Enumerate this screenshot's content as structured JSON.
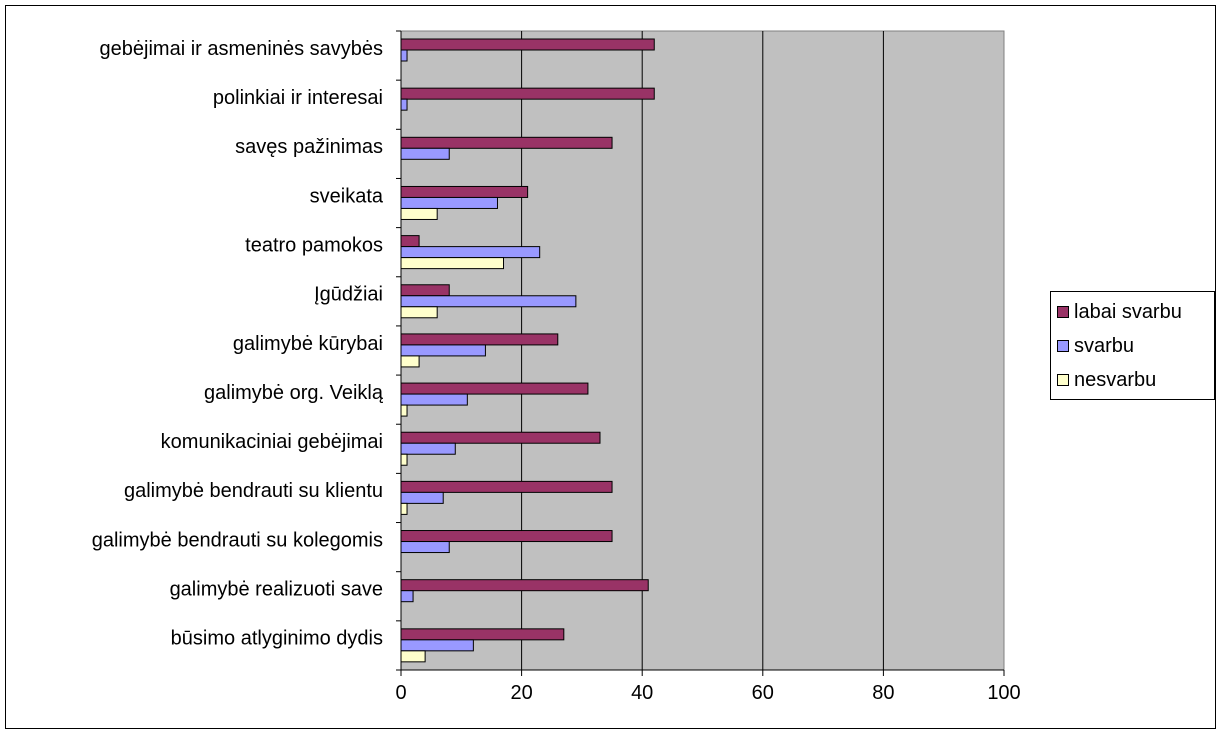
{
  "chart_data": {
    "type": "bar",
    "orientation": "horizontal",
    "categories": [
      "gebėjimai ir asmeninės savybės",
      "polinkiai ir interesai",
      "savęs pažinimas",
      "sveikata",
      "teatro pamokos",
      "Įgūdžiai",
      "galimybė kūrybai",
      "galimybė org. Veiklą",
      "komunikaciniai gebėjimai",
      "galimybė bendrauti su klientu",
      "galimybė bendrauti su kolegomis",
      "galimybė realizuoti save",
      "būsimo atlyginimo dydis"
    ],
    "series": [
      {
        "name": "labai svarbu",
        "color": "#993366",
        "values": [
          42,
          42,
          35,
          21,
          3,
          8,
          26,
          31,
          33,
          35,
          35,
          41,
          27
        ]
      },
      {
        "name": "svarbu",
        "color": "#9999FF",
        "values": [
          1,
          1,
          8,
          16,
          23,
          29,
          14,
          11,
          9,
          7,
          8,
          2,
          12
        ]
      },
      {
        "name": "nesvarbu",
        "color": "#FFFFCC",
        "values": [
          0,
          0,
          0,
          6,
          17,
          6,
          3,
          1,
          1,
          1,
          0,
          0,
          4
        ]
      }
    ],
    "xlim": [
      0,
      100
    ],
    "xticks": [
      0,
      20,
      40,
      60,
      80,
      100
    ],
    "grid": "vertical",
    "plot_background": "#C0C0C0",
    "legend": "right",
    "title": "",
    "xlabel": "",
    "ylabel": ""
  }
}
